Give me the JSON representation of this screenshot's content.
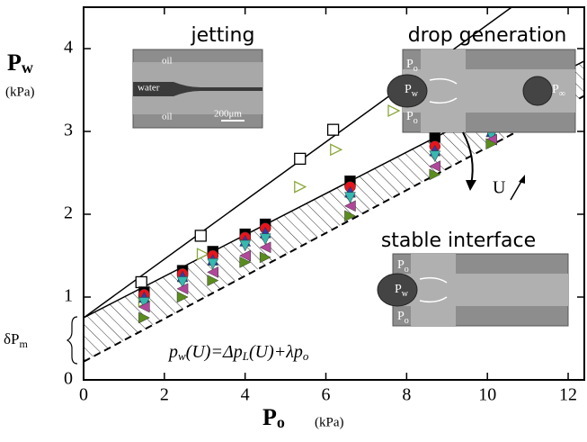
{
  "chart_data": {
    "type": "scatter",
    "xlabel": {
      "main": "P",
      "sub": "o",
      "unit": "(kPa)"
    },
    "ylabel": {
      "main": "P",
      "sub": "w",
      "unit": "(kPa)"
    },
    "xlim": [
      0,
      12.4
    ],
    "ylim": [
      0,
      4.5
    ],
    "xticks": [
      0,
      2,
      4,
      6,
      8,
      10,
      12
    ],
    "yticks": [
      0,
      1,
      2,
      3,
      4
    ],
    "series": [
      {
        "marker": "square-open",
        "color": "#000000",
        "x": [
          1.43,
          2.9,
          5.36,
          6.18,
          8.26
        ],
        "values": [
          1.18,
          1.74,
          2.67,
          3.02,
          3.46
        ]
      },
      {
        "marker": "triangle-right-open",
        "color": "#8aa83a",
        "x": [
          1.5,
          2.95,
          5.36,
          6.25,
          7.68
        ],
        "values": [
          0.95,
          1.52,
          2.33,
          2.78,
          3.25
        ]
      },
      {
        "marker": "square",
        "color": "#000000",
        "x": [
          1.5,
          2.45,
          3.2,
          4.0,
          4.5,
          6.6,
          8.7
        ],
        "values": [
          1.06,
          1.32,
          1.55,
          1.76,
          1.88,
          2.4,
          2.93
        ]
      },
      {
        "marker": "circle",
        "color": "#e8141c",
        "x": [
          1.5,
          2.45,
          3.2,
          4.0,
          4.5,
          6.6,
          8.7
        ],
        "values": [
          1.03,
          1.28,
          1.5,
          1.72,
          1.83,
          2.33,
          2.82
        ]
      },
      {
        "marker": "triangle-up",
        "color": "#2a3eb1",
        "x": [
          1.5,
          2.45,
          3.2,
          4.0,
          4.5,
          6.6,
          8.7,
          10.1
        ],
        "values": [
          1.0,
          1.25,
          1.45,
          1.68,
          1.78,
          2.27,
          2.77,
          3.0
        ]
      },
      {
        "marker": "triangle-down",
        "color": "#35b8b0",
        "x": [
          1.5,
          2.45,
          3.2,
          4.0,
          4.5,
          6.6,
          8.7,
          10.1
        ],
        "values": [
          0.93,
          1.18,
          1.4,
          1.62,
          1.7,
          2.2,
          2.7,
          2.95
        ]
      },
      {
        "marker": "triangle-left",
        "color": "#b1479b",
        "x": [
          1.5,
          2.45,
          3.2,
          4.0,
          4.5,
          6.6,
          8.7,
          10.1
        ],
        "values": [
          0.88,
          1.1,
          1.3,
          1.5,
          1.6,
          2.1,
          2.58,
          2.9
        ]
      },
      {
        "marker": "triangle-right",
        "color": "#5b8c1e",
        "x": [
          1.5,
          2.45,
          3.2,
          4.0,
          4.5,
          6.6,
          8.7,
          10.1
        ],
        "values": [
          0.75,
          1.0,
          1.2,
          1.42,
          1.48,
          1.98,
          2.48,
          2.85
        ]
      }
    ],
    "lines": [
      {
        "style": "solid",
        "x": [
          0,
          10.6
        ],
        "y": [
          0.75,
          4.5
        ]
      },
      {
        "style": "solid",
        "x": [
          0,
          12.4
        ],
        "y": [
          0.75,
          3.85
        ]
      },
      {
        "style": "dashed",
        "x": [
          0,
          12.4
        ],
        "y": [
          0.22,
          3.43
        ]
      }
    ],
    "hatch_between": [
      1,
      2
    ],
    "annotations": {
      "jetting": "jetting",
      "drop": "drop generation",
      "stable": "stable interface",
      "dpm": {
        "main": "δP",
        "sub": "m"
      },
      "u": "U",
      "formula": [
        {
          "t": "p"
        },
        {
          "t": "w",
          "sub": true
        },
        {
          "t": "("
        },
        {
          "t": "U"
        },
        {
          "t": ")=Δ"
        },
        {
          "t": "p"
        },
        {
          "t": "L",
          "sub": true
        },
        {
          "t": "("
        },
        {
          "t": "U"
        },
        {
          "t": ")+λ"
        },
        {
          "t": "p"
        },
        {
          "t": "o",
          "sub": true
        }
      ]
    },
    "insets": [
      {
        "labels": [
          "oil",
          "water",
          "oil",
          "200μm"
        ]
      },
      {
        "labels": [
          {
            "main": "P",
            "sub": "o"
          },
          {
            "main": "P",
            "sub": "o"
          },
          {
            "main": "P",
            "sub": "w"
          },
          {
            "main": "P",
            "sub": "∞"
          }
        ]
      },
      {
        "labels": [
          {
            "main": "P",
            "sub": "o"
          },
          {
            "main": "P",
            "sub": "o"
          },
          {
            "main": "P",
            "sub": "w"
          }
        ]
      }
    ]
  }
}
